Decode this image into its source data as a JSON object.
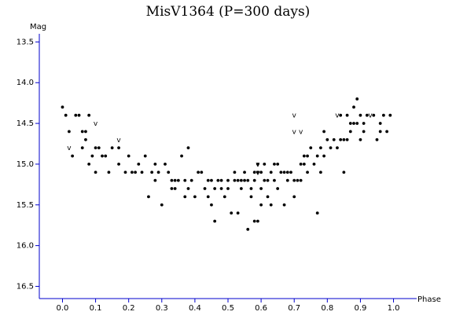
{
  "chart_data": {
    "type": "scatter",
    "title": "MisV1364 (P=300 days)",
    "xlabel": "Phase",
    "ylabel": "Mag",
    "xlim": [
      -0.07,
      1.07
    ],
    "ylim": [
      13.4,
      16.65
    ],
    "y_inverted": true,
    "x_ticks": [
      "0.0",
      "0.1",
      "0.2",
      "0.3",
      "0.4",
      "0.5",
      "0.6",
      "0.7",
      "0.8",
      "0.9",
      "1.0"
    ],
    "y_ticks": [
      "13.5",
      "14.0",
      "14.5",
      "15.0",
      "15.5",
      "16.0",
      "16.5"
    ],
    "grid": false,
    "upper_limit_marker": "v",
    "points": [
      [
        0.0,
        14.3
      ],
      [
        0.01,
        14.4
      ],
      [
        0.02,
        14.6
      ],
      [
        0.03,
        14.9
      ],
      [
        0.04,
        14.4
      ],
      [
        0.05,
        14.4
      ],
      [
        0.06,
        14.8
      ],
      [
        0.06,
        14.6
      ],
      [
        0.07,
        14.6
      ],
      [
        0.07,
        14.7
      ],
      [
        0.08,
        15.0
      ],
      [
        0.08,
        14.4
      ],
      [
        0.09,
        14.9
      ],
      [
        0.1,
        15.1
      ],
      [
        0.1,
        14.8
      ],
      [
        0.11,
        14.8
      ],
      [
        0.12,
        14.9
      ],
      [
        0.13,
        14.9
      ],
      [
        0.14,
        15.1
      ],
      [
        0.15,
        14.8
      ],
      [
        0.17,
        14.8
      ],
      [
        0.17,
        15.0
      ],
      [
        0.19,
        15.1
      ],
      [
        0.2,
        14.9
      ],
      [
        0.21,
        15.1
      ],
      [
        0.22,
        15.1
      ],
      [
        0.23,
        15.0
      ],
      [
        0.24,
        15.1
      ],
      [
        0.25,
        14.9
      ],
      [
        0.26,
        15.4
      ],
      [
        0.27,
        15.1
      ],
      [
        0.28,
        15.0
      ],
      [
        0.28,
        15.2
      ],
      [
        0.29,
        15.1
      ],
      [
        0.3,
        15.5
      ],
      [
        0.31,
        15.0
      ],
      [
        0.32,
        15.1
      ],
      [
        0.33,
        15.2
      ],
      [
        0.33,
        15.3
      ],
      [
        0.34,
        15.2
      ],
      [
        0.34,
        15.3
      ],
      [
        0.35,
        15.2
      ],
      [
        0.36,
        14.9
      ],
      [
        0.37,
        15.2
      ],
      [
        0.37,
        15.4
      ],
      [
        0.38,
        14.8
      ],
      [
        0.38,
        15.3
      ],
      [
        0.39,
        15.2
      ],
      [
        0.4,
        15.4
      ],
      [
        0.41,
        15.1
      ],
      [
        0.42,
        15.1
      ],
      [
        0.43,
        15.3
      ],
      [
        0.44,
        15.2
      ],
      [
        0.44,
        15.4
      ],
      [
        0.45,
        15.2
      ],
      [
        0.45,
        15.5
      ],
      [
        0.46,
        15.7
      ],
      [
        0.46,
        15.3
      ],
      [
        0.47,
        15.2
      ],
      [
        0.48,
        15.3
      ],
      [
        0.48,
        15.2
      ],
      [
        0.49,
        15.4
      ],
      [
        0.5,
        15.3
      ],
      [
        0.5,
        15.2
      ],
      [
        0.51,
        15.6
      ],
      [
        0.52,
        15.2
      ],
      [
        0.52,
        15.1
      ],
      [
        0.53,
        15.6
      ],
      [
        0.53,
        15.2
      ],
      [
        0.54,
        15.3
      ],
      [
        0.54,
        15.2
      ],
      [
        0.55,
        15.2
      ],
      [
        0.55,
        15.1
      ],
      [
        0.56,
        15.8
      ],
      [
        0.56,
        15.2
      ],
      [
        0.57,
        15.4
      ],
      [
        0.57,
        15.3
      ],
      [
        0.58,
        15.7
      ],
      [
        0.58,
        15.1
      ],
      [
        0.58,
        15.2
      ],
      [
        0.59,
        15.7
      ],
      [
        0.59,
        15.0
      ],
      [
        0.59,
        15.1
      ],
      [
        0.6,
        15.3
      ],
      [
        0.6,
        15.5
      ],
      [
        0.6,
        15.1
      ],
      [
        0.61,
        15.0
      ],
      [
        0.61,
        15.2
      ],
      [
        0.62,
        15.2
      ],
      [
        0.62,
        15.4
      ],
      [
        0.63,
        15.1
      ],
      [
        0.63,
        15.5
      ],
      [
        0.64,
        15.0
      ],
      [
        0.64,
        15.2
      ],
      [
        0.65,
        15.3
      ],
      [
        0.65,
        15.0
      ],
      [
        0.66,
        15.1
      ],
      [
        0.67,
        15.5
      ],
      [
        0.67,
        15.1
      ],
      [
        0.68,
        15.1
      ],
      [
        0.68,
        15.2
      ],
      [
        0.69,
        15.1
      ],
      [
        0.7,
        15.2
      ],
      [
        0.7,
        15.4
      ],
      [
        0.71,
        15.2
      ],
      [
        0.72,
        15.2
      ],
      [
        0.72,
        15.0
      ],
      [
        0.73,
        14.9
      ],
      [
        0.73,
        15.0
      ],
      [
        0.74,
        15.1
      ],
      [
        0.74,
        14.9
      ],
      [
        0.75,
        14.8
      ],
      [
        0.76,
        15.0
      ],
      [
        0.77,
        15.6
      ],
      [
        0.77,
        14.9
      ],
      [
        0.78,
        14.8
      ],
      [
        0.78,
        15.1
      ],
      [
        0.79,
        14.6
      ],
      [
        0.79,
        14.9
      ],
      [
        0.8,
        14.7
      ],
      [
        0.81,
        14.8
      ],
      [
        0.82,
        14.7
      ],
      [
        0.83,
        14.8
      ],
      [
        0.84,
        14.4
      ],
      [
        0.84,
        14.7
      ],
      [
        0.85,
        14.7
      ],
      [
        0.85,
        15.1
      ],
      [
        0.86,
        14.7
      ],
      [
        0.86,
        14.4
      ],
      [
        0.87,
        14.5
      ],
      [
        0.87,
        14.6
      ],
      [
        0.88,
        14.3
      ],
      [
        0.88,
        14.5
      ],
      [
        0.89,
        14.2
      ],
      [
        0.89,
        14.5
      ],
      [
        0.9,
        14.7
      ],
      [
        0.9,
        14.4
      ],
      [
        0.91,
        14.5
      ],
      [
        0.91,
        14.6
      ],
      [
        0.92,
        14.4
      ],
      [
        0.94,
        14.4
      ],
      [
        0.95,
        14.7
      ],
      [
        0.96,
        14.6
      ],
      [
        0.96,
        14.5
      ],
      [
        0.97,
        14.4
      ],
      [
        0.98,
        14.6
      ],
      [
        0.99,
        14.4
      ]
    ],
    "upper_limits": [
      [
        0.02,
        14.8
      ],
      [
        0.1,
        14.5
      ],
      [
        0.17,
        14.7
      ],
      [
        0.59,
        15.0
      ],
      [
        0.59,
        15.1
      ],
      [
        0.7,
        14.4
      ],
      [
        0.7,
        14.6
      ],
      [
        0.72,
        14.6
      ],
      [
        0.83,
        14.4
      ],
      [
        0.93,
        14.4
      ]
    ]
  }
}
